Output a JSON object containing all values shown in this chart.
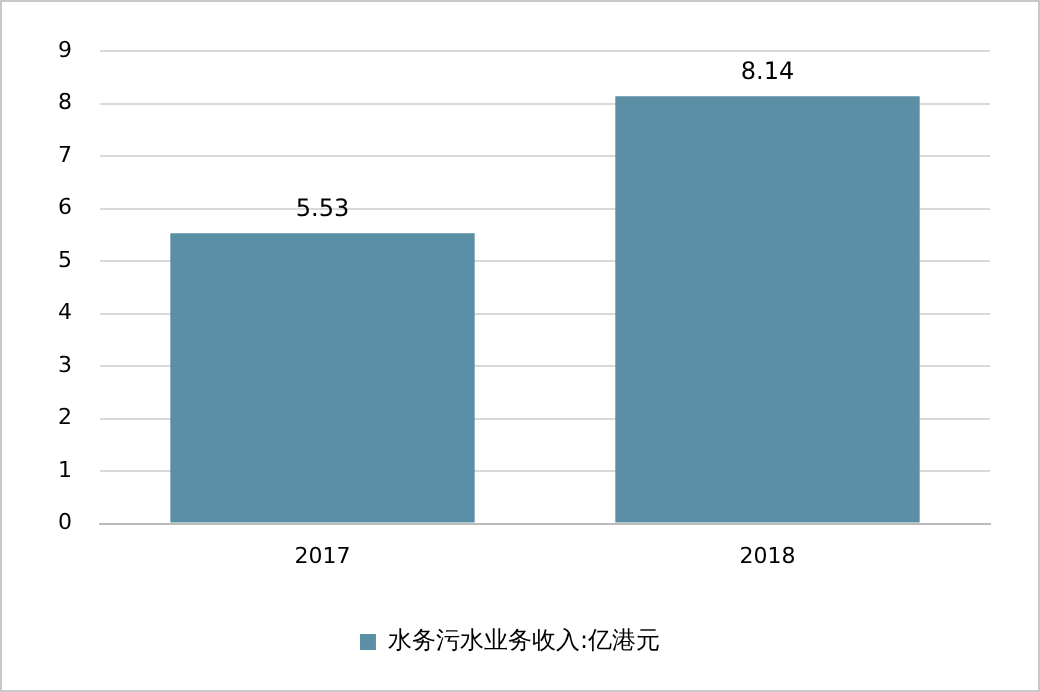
{
  "chart_data": {
    "type": "bar",
    "categories": [
      "2017",
      "2018"
    ],
    "series": [
      {
        "name": "水务污水业务收入:亿港元",
        "color": "#5b8fa6",
        "values": [
          5.53,
          8.14
        ]
      }
    ],
    "ylim": [
      0,
      9
    ],
    "yticks": [
      0,
      1,
      2,
      3,
      4,
      5,
      6,
      7,
      8,
      9
    ],
    "grid": "y",
    "legend": "bottom",
    "data_labels": true
  }
}
